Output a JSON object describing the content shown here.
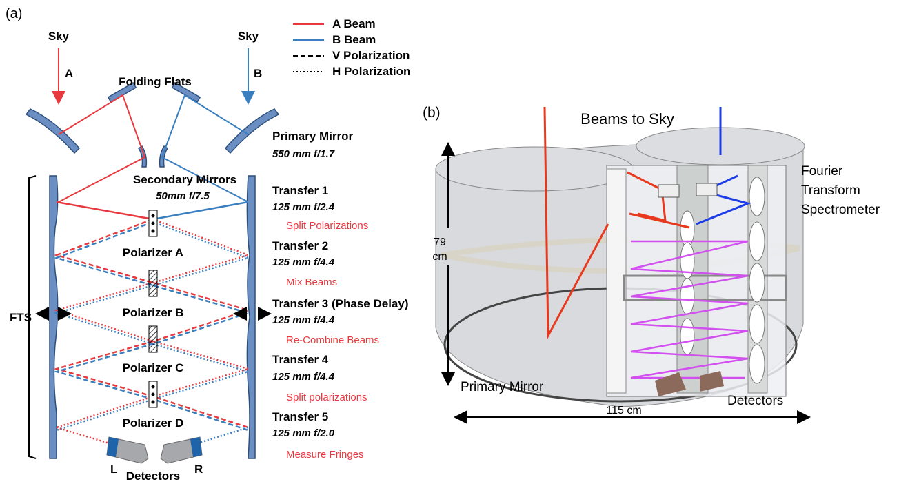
{
  "panel_a": {
    "label": "(a)",
    "sky_left": "Sky",
    "sky_right": "Sky",
    "beam_a": "A",
    "beam_b": "B",
    "legend": [
      "A Beam",
      "B Beam",
      "V Polarization",
      "H Polarization"
    ],
    "folding_flats": "Folding Flats",
    "primary_mirror": {
      "title": "Primary Mirror",
      "spec": "550 mm f/1.7"
    },
    "secondary_mirrors": {
      "title": "Secondary Mirrors",
      "spec": "50mm  f/7.5"
    },
    "transfers": [
      {
        "title": "Transfer 1",
        "spec": "125 mm f/2.4",
        "note": "Split Polarizations"
      },
      {
        "title": "Transfer 2",
        "spec": "125 mm f/4.4",
        "note": "Mix Beams"
      },
      {
        "title": "Transfer 3 (Phase Delay)",
        "spec": "125 mm f/4.4",
        "note": "Re-Combine Beams"
      },
      {
        "title": "Transfer 4",
        "spec": "125 mm f/4.4",
        "note": "Split polarizations"
      },
      {
        "title": "Transfer 5",
        "spec": "125 mm f/2.0",
        "note": "Measure Fringes"
      }
    ],
    "polarizers": [
      "Polarizer A",
      "Polarizer B",
      "Polarizer C",
      "Polarizer D"
    ],
    "fts": "FTS",
    "detectors": "Detectors",
    "detector_left": "L",
    "detector_right": "R"
  },
  "panel_b": {
    "label": "(b)",
    "beams_to_sky": "Beams to Sky",
    "fts_lines": [
      "Fourier",
      "Transform",
      "Spectrometer"
    ],
    "height_lines": [
      "79",
      "cm"
    ],
    "primary_mirror": "Primary Mirror",
    "detectors": "Detectors",
    "width": "115 cm"
  }
}
